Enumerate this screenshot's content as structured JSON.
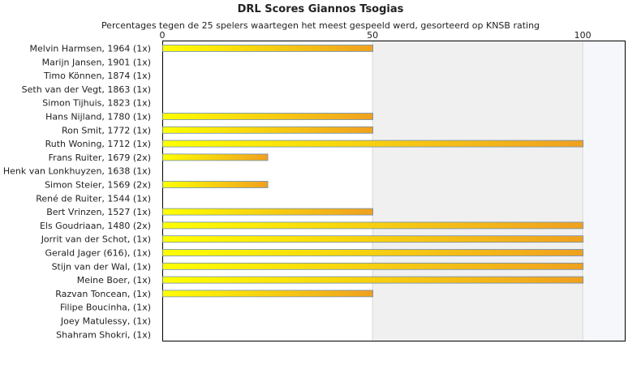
{
  "chart_data": {
    "type": "bar",
    "orientation": "horizontal",
    "title": "DRL Scores Giannos Tsogias",
    "subtitle": "Percentages tegen de 25 spelers waartegen het meest gespeeld werd, gesorteerd op KNSB rating",
    "xlim": [
      0,
      110
    ],
    "xticks": [
      0,
      50,
      100
    ],
    "categories": [
      "Melvin Harmsen, 1964 (1x)",
      "Marijn Jansen, 1901 (1x)",
      "Timo Können, 1874 (1x)",
      "Seth van der Vegt, 1863 (1x)",
      "Simon Tijhuis, 1823 (1x)",
      "Hans Nijland, 1780 (1x)",
      "Ron Smit, 1772 (1x)",
      "Ruth Woning, 1712 (1x)",
      "Frans Ruiter, 1679 (2x)",
      "Henk van Lonkhuyzen, 1638 (1x)",
      "Simon Steier, 1569 (2x)",
      "René de Ruiter, 1544 (1x)",
      "Bert Vrinzen, 1527 (1x)",
      "Els Goudriaan, 1480 (2x)",
      "Jorrit van der Schot,  (1x)",
      "Gerald Jager (616),  (1x)",
      "Stijn van der Wal,  (1x)",
      "Meine Boer,  (1x)",
      "Razvan Toncean,  (1x)",
      "Filipe Boucinha,  (1x)",
      "Joey Matulessy,  (1x)",
      "Shahram Shokri,  (1x)"
    ],
    "values": [
      50,
      0,
      0,
      0,
      0,
      50,
      50,
      100,
      25,
      0,
      25,
      0,
      50,
      100,
      100,
      100,
      100,
      100,
      50,
      0,
      0,
      0
    ],
    "colors": {
      "bar_start": "#ffff00",
      "bar_end": "#f0a020",
      "bar_border": "#6f8fb0",
      "band_shade": "#f0f0f0",
      "axis": "#000000",
      "gridline": "#d8d8d8"
    }
  }
}
